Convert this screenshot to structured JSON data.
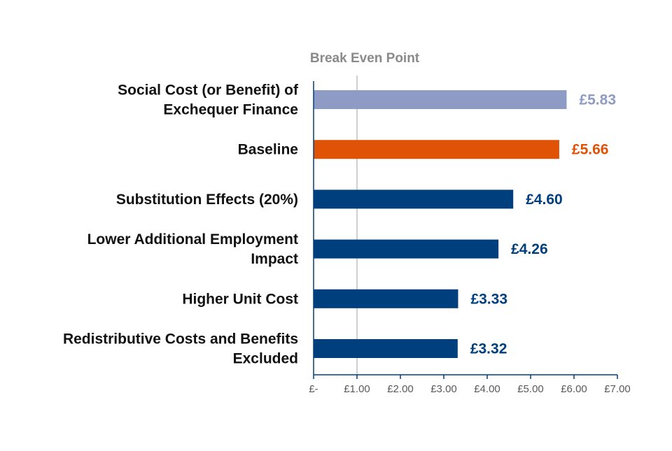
{
  "chart_data": {
    "type": "bar",
    "orientation": "horizontal",
    "title": "",
    "xlabel": "",
    "ylabel": "",
    "xlim": [
      0,
      7
    ],
    "grid": false,
    "legend": "none",
    "categories": [
      [
        "Social Cost (or Benefit) of",
        "Exchequer Finance"
      ],
      [
        "Baseline"
      ],
      [
        "Substitution Effects (20%)"
      ],
      [
        "Lower Additional Employment",
        "Impact"
      ],
      [
        "Higher Unit Cost"
      ],
      [
        "Redistributive Costs and Benefits",
        "Excluded"
      ]
    ],
    "values": [
      5.83,
      5.66,
      4.6,
      4.26,
      3.33,
      3.32
    ],
    "value_labels": [
      "£5.83",
      "£5.66",
      "£4.60",
      "£4.26",
      "£3.33",
      "£3.32"
    ],
    "bar_colors": [
      "#8e9bc4",
      "#e05206",
      "#003f7d",
      "#003f7d",
      "#003f7d",
      "#003f7d"
    ],
    "label_colors": [
      "#8e9bc4",
      "#e05206",
      "#003f7d",
      "#003f7d",
      "#003f7d",
      "#003f7d"
    ],
    "x_ticks": [
      0,
      1,
      2,
      3,
      4,
      5,
      6,
      7
    ],
    "x_tick_labels": [
      "£-",
      "£1.00",
      "£2.00",
      "£3.00",
      "£4.00",
      "£5.00",
      "£6.00",
      "£7.00"
    ],
    "reference_line": {
      "value": 1,
      "label": "Break Even Point",
      "color": "#d0d0d0"
    },
    "axis_color": "#003f7d"
  }
}
